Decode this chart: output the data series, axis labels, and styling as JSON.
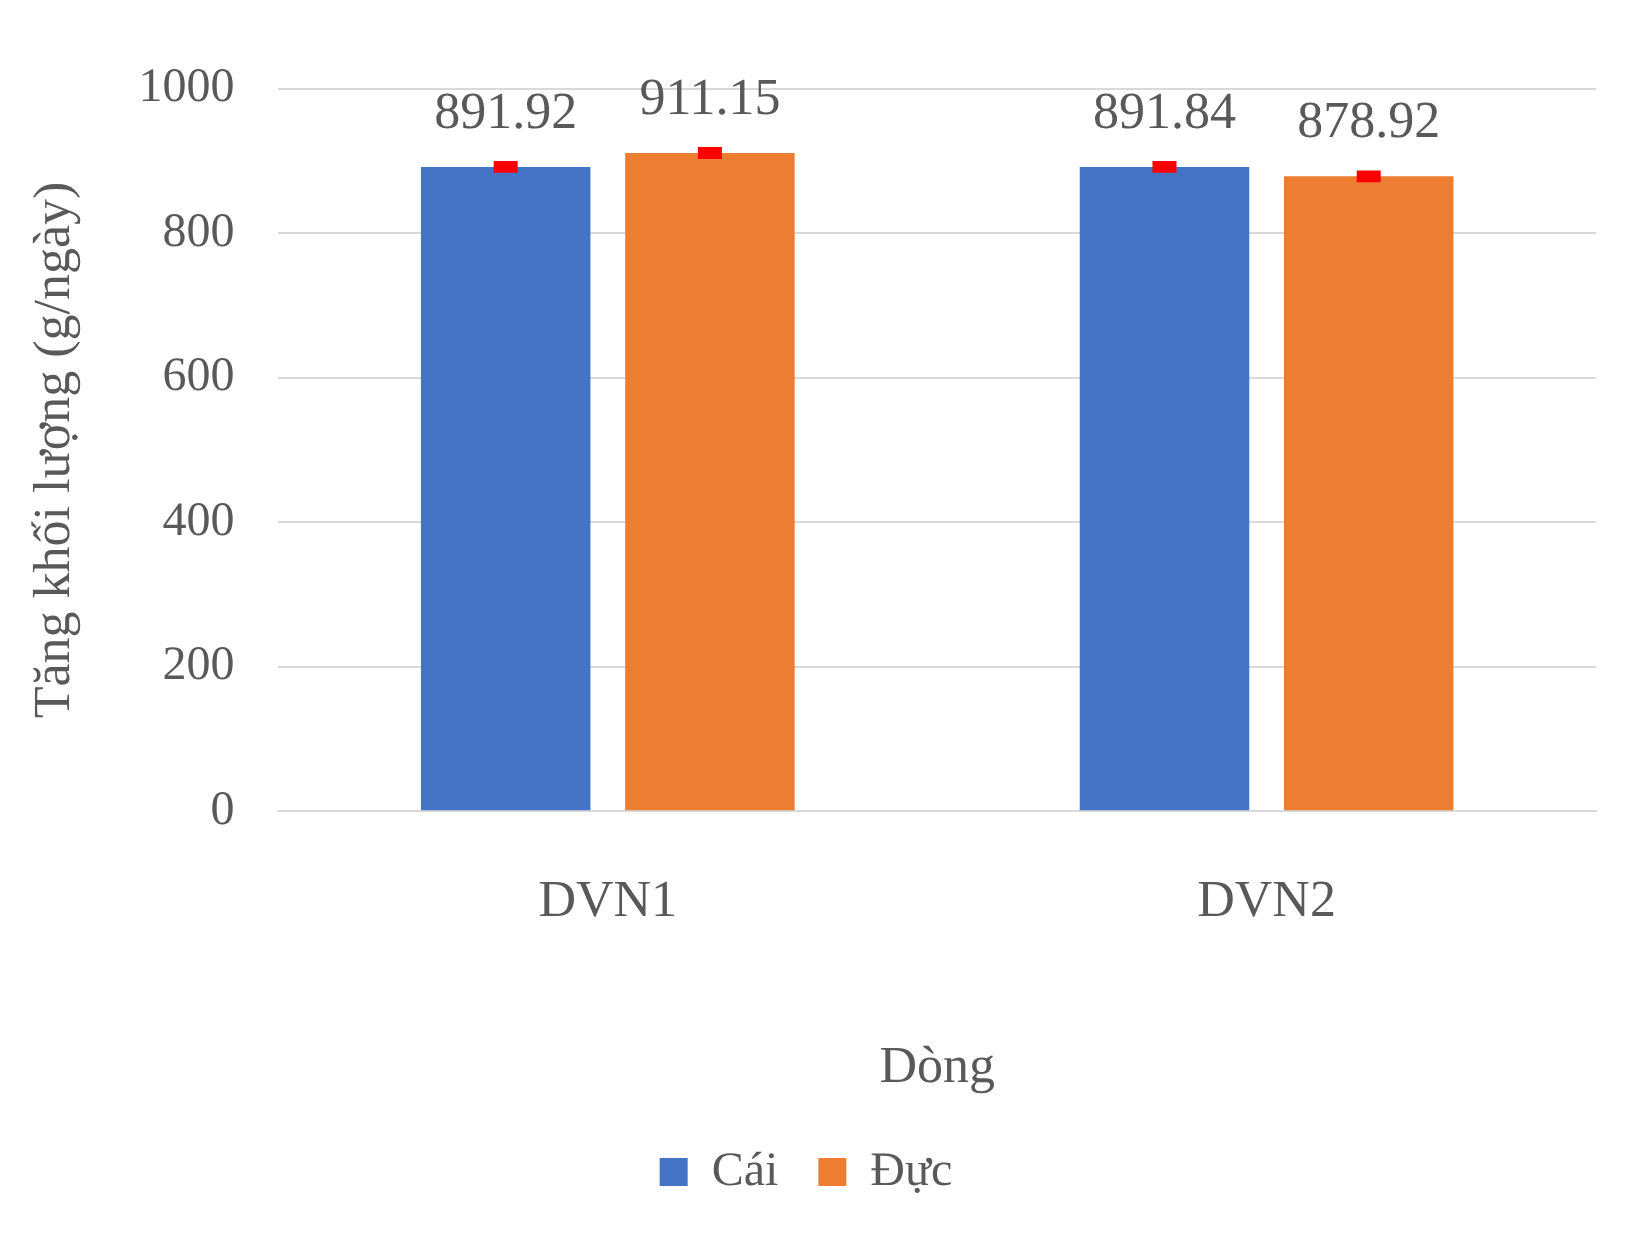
{
  "chart_data": {
    "type": "bar",
    "xlabel": "Dòng",
    "ylabel": "Tăng khối lượng (g/ngày)",
    "categories": [
      "DVN1",
      "DVN2"
    ],
    "series": [
      {
        "name": "Cái",
        "color": "#4472c4",
        "values": [
          891.92,
          891.84
        ],
        "errors": [
          4,
          4
        ]
      },
      {
        "name": "Đực",
        "color": "#ed7d31",
        "values": [
          911.15,
          878.92
        ],
        "errors": [
          4,
          4
        ]
      }
    ],
    "ylim": [
      0,
      1000
    ],
    "yticks": [
      0,
      200,
      400,
      600,
      800,
      1000
    ],
    "grid": "y",
    "legend": "bottom",
    "data_labels": true
  }
}
